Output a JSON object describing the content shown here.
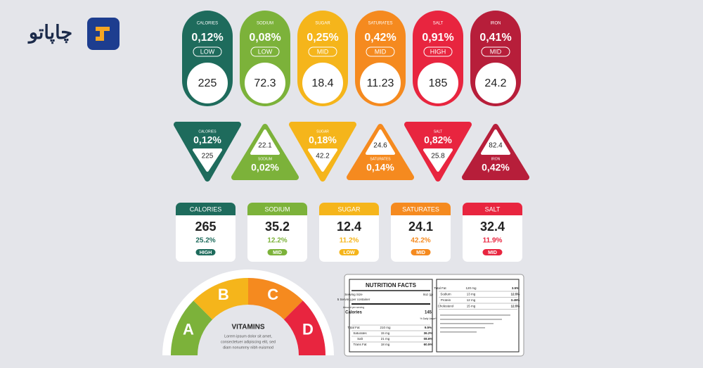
{
  "logo": {
    "text": "چاپاتو"
  },
  "pills": [
    {
      "name": "CALORIES",
      "percent": "0,12%",
      "level": "LOW",
      "value": "225"
    },
    {
      "name": "SODIUM",
      "percent": "0,08%",
      "level": "LOW",
      "value": "72.3"
    },
    {
      "name": "SUGAR",
      "percent": "0,25%",
      "level": "MID",
      "value": "18.4"
    },
    {
      "name": "SATURATES",
      "percent": "0,42%",
      "level": "MID",
      "value": "11.23"
    },
    {
      "name": "SALT",
      "percent": "0,91%",
      "level": "HIGH",
      "value": "185"
    },
    {
      "name": "IRON",
      "percent": "0,41%",
      "level": "MID",
      "value": "24.2"
    }
  ],
  "triangles": [
    {
      "name": "CALORIES",
      "percent": "0,12%",
      "value": "225"
    },
    {
      "name": "SODIUM",
      "percent": "0,02%",
      "value": "22.1"
    },
    {
      "name": "SUGAR",
      "percent": "0,18%",
      "value": "42.2"
    },
    {
      "name": "SATURATES",
      "percent": "0,14%",
      "value": "24.6"
    },
    {
      "name": "SALT",
      "percent": "0,82%",
      "value": "25.8"
    },
    {
      "name": "IRON",
      "percent": "0,42%",
      "value": "82.4"
    }
  ],
  "cards": [
    {
      "name": "CALORIES",
      "value": "265",
      "percent": "25.2%",
      "level": "HIGH"
    },
    {
      "name": "SODIUM",
      "value": "35.2",
      "percent": "12.2%",
      "level": "MID"
    },
    {
      "name": "SUGAR",
      "value": "12.4",
      "percent": "11.2%",
      "level": "LOW"
    },
    {
      "name": "SATURATES",
      "value": "24.1",
      "percent": "42.2%",
      "level": "MID"
    },
    {
      "name": "SALT",
      "value": "32.4",
      "percent": "11.9%",
      "level": "MID"
    }
  ],
  "gauge": {
    "title": "VITAMINS",
    "grades": [
      "A",
      "B",
      "C",
      "D"
    ],
    "text": [
      "Lorem ipsum dolor sit amet,",
      "consectetuer adipiscing elit, sed",
      "diam nonummy nibh euismod"
    ]
  },
  "nutrition": {
    "title": "NUTRITION FACTS",
    "serving": "Serving Size",
    "serving_value": "8oz (g)",
    "per_container": "5 Serving per container",
    "amount": "Amount per serving",
    "calories": "Calories",
    "calories_value": "145",
    "daily": "% Daily Value*",
    "left_rows": [
      [
        "Total Fat",
        "210 mg",
        "9.5%"
      ],
      [
        "Saturates",
        "15 mg",
        "36.2%"
      ],
      [
        "Salt",
        "21 mg",
        "08.6%"
      ],
      [
        "Trans Fat",
        "18 mg",
        "60.5%"
      ]
    ],
    "right_rows": [
      [
        "Total Fat",
        "120 mg",
        "3.5%"
      ],
      [
        "Sodium",
        "13 mg",
        "12.5%"
      ],
      [
        "Protein",
        "12 mg",
        "3.45%"
      ],
      [
        "Cholesterol",
        "15 mg",
        "12.5%"
      ]
    ]
  }
}
